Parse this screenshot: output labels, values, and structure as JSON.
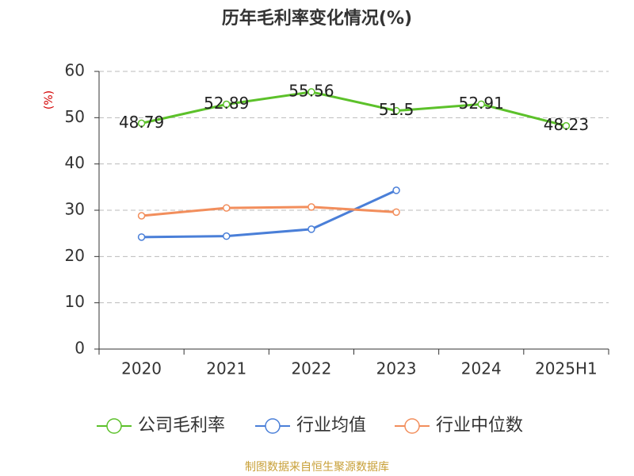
{
  "chart_data": {
    "type": "line",
    "title": "历年毛利率变化情况(%)",
    "y_label": "(%)",
    "categories": [
      "2020",
      "2021",
      "2022",
      "2023",
      "2024",
      "2025H1"
    ],
    "series": [
      {
        "name": "公司毛利率",
        "color": "#5cc12a",
        "values": [
          48.79,
          52.89,
          55.56,
          51.5,
          52.91,
          48.23
        ],
        "data_labels": true
      },
      {
        "name": "行业均值",
        "color": "#4a7fd8",
        "values": [
          24.2,
          24.4,
          25.9,
          34.3,
          null,
          null
        ]
      },
      {
        "name": "行业中位数",
        "color": "#f28e5c",
        "values": [
          28.8,
          30.5,
          30.7,
          29.6,
          null,
          null
        ]
      }
    ],
    "ylim": [
      0,
      60
    ],
    "yticks": [
      0,
      10,
      20,
      30,
      40,
      50,
      60
    ],
    "grid": true,
    "legend": "bottom",
    "source": "制图数据来自恒生聚源数据库"
  }
}
